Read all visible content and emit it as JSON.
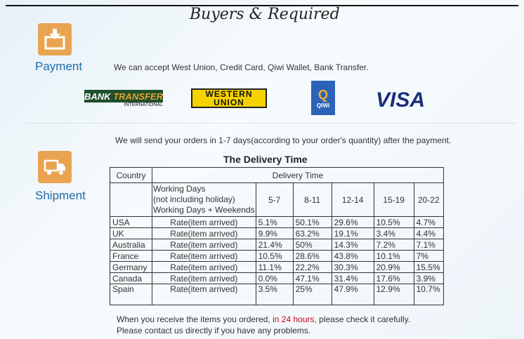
{
  "header": {
    "title": "Buyers & Required"
  },
  "payment": {
    "label": "Payment",
    "icon": "download-box-icon",
    "text": "We can accept West Union, Credit Card, Qiwi Wallet, Bank Transfer.",
    "logos": {
      "bank_transfer": "BANK TRANSFER",
      "bank_transfer_sub": "INTERNATIONAL",
      "western_union_1": "WESTERN",
      "western_union_2": "UNION",
      "qiwi": "QIWI",
      "visa": "VISA"
    }
  },
  "shipment": {
    "label": "Shipment",
    "icon": "truck-icon",
    "text": "We will send your orders in 1-7 days(according to your order's quantity) after the payment.",
    "table_title": "The Delivery Time",
    "header": {
      "country": "Country",
      "delivery_time": "Delivery Time",
      "working_days_1": "Working Days",
      "working_days_2": "(not including holiday)",
      "working_days_3": "Working Days + Weekends",
      "ranges": [
        "5-7",
        "8-11",
        "12-14",
        "15-19",
        "20-22"
      ]
    },
    "rows": [
      {
        "country": "USA",
        "label": "Rate(item arrived)",
        "values": [
          "5.1%",
          "50.1%",
          "29.6%",
          "10.5%",
          "4.7%"
        ]
      },
      {
        "country": "UK",
        "label": "Rate(item arrived)",
        "values": [
          "9.9%",
          "63.2%",
          "19.1%",
          "3.4%",
          "4.4%"
        ]
      },
      {
        "country": "Australia",
        "label": "Rate(item arrived)",
        "values": [
          "21.4%",
          "50%",
          "14.3%",
          "7.2%",
          "7.1%"
        ]
      },
      {
        "country": "France",
        "label": "Rate(item arrived)",
        "values": [
          "10.5%",
          "28.6%",
          "43.8%",
          "10.1%",
          "7%"
        ]
      },
      {
        "country": "Germany",
        "label": "Rate(item arrived)",
        "values": [
          "11.1%",
          "22.2%",
          "30.3%",
          "20.9%",
          "15.5%"
        ]
      },
      {
        "country": "Canada",
        "label": "Rate(item arrived)",
        "values": [
          "0.0%",
          "47.1%",
          "31.4%",
          "17.6%",
          "3.9%"
        ]
      },
      {
        "country": "Spain",
        "label": "Rate(item arrived)",
        "values": [
          "3.5%",
          "25%",
          "47.9%",
          "12.9%",
          "10.7%"
        ]
      }
    ],
    "note_before": "When you receive the items you ordered, ",
    "note_highlight": "in 24 hours",
    "note_after": ", please check it carefully. Please contact us directly if you have any problems.",
    "highlight_color": "#d0021b"
  }
}
